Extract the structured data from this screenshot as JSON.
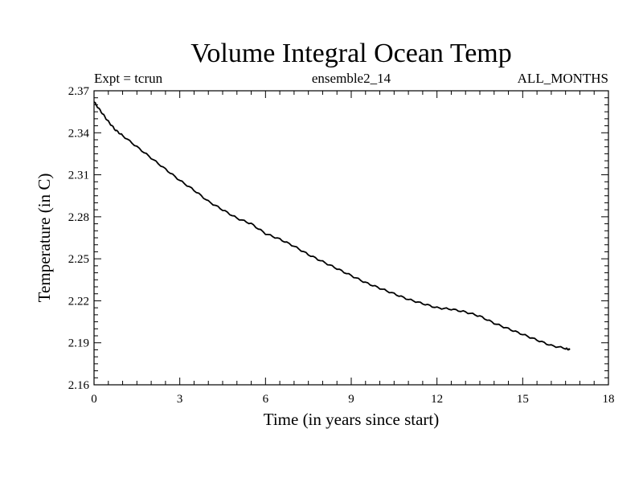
{
  "chart_data": {
    "type": "line",
    "title": "Volume Integral Ocean Temp",
    "subtitle_left": "Expt = tcrun",
    "subtitle_center": "ensemble2_14",
    "subtitle_right": "ALL_MONTHS",
    "xlabel": "Time (in years since start)",
    "ylabel": "Temperature (in C)",
    "xlim": [
      0,
      18
    ],
    "ylim": [
      2.16,
      2.37
    ],
    "x_major_ticks": [
      0,
      3,
      6,
      9,
      12,
      15,
      18
    ],
    "x_tick_labels": [
      "0",
      "3",
      "6",
      "9",
      "12",
      "15",
      "18"
    ],
    "y_major_ticks": [
      2.16,
      2.19,
      2.22,
      2.25,
      2.28,
      2.31,
      2.34,
      2.37
    ],
    "y_tick_labels": [
      "2.16",
      "2.19",
      "2.22",
      "2.25",
      "2.28",
      "2.31",
      "2.34",
      "2.37"
    ],
    "grid": false,
    "series": [
      {
        "color": "#000000",
        "x": [
          0,
          0.25,
          0.5,
          0.75,
          1,
          1.5,
          2,
          2.5,
          3,
          3.5,
          4,
          4.5,
          5,
          5.5,
          6,
          6.5,
          7,
          7.5,
          8,
          8.5,
          9,
          9.5,
          10,
          10.5,
          11,
          11.5,
          12,
          12.5,
          13,
          13.5,
          14,
          14.5,
          15,
          15.5,
          16,
          16.5,
          16.65
        ],
        "y": [
          2.362,
          2.355,
          2.348,
          2.342,
          2.338,
          2.33,
          2.322,
          2.314,
          2.306,
          2.299,
          2.291,
          2.285,
          2.279,
          2.275,
          2.268,
          2.264,
          2.259,
          2.253,
          2.248,
          2.243,
          2.238,
          2.233,
          2.229,
          2.225,
          2.221,
          2.218,
          2.215,
          2.214,
          2.212,
          2.209,
          2.204,
          2.2,
          2.196,
          2.192,
          2.188,
          2.186,
          2.185
        ]
      }
    ]
  }
}
